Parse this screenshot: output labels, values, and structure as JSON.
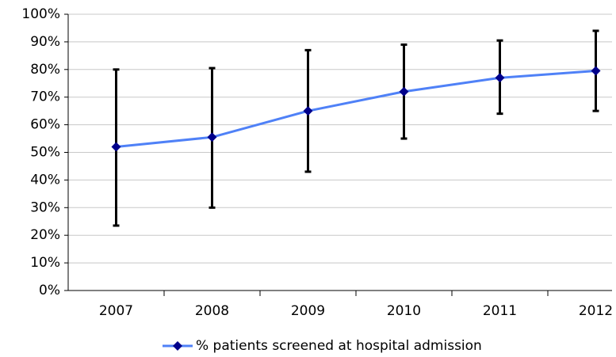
{
  "chart_data": {
    "type": "line",
    "categories": [
      "2007",
      "2008",
      "2009",
      "2010",
      "2011",
      "2012"
    ],
    "series": [
      {
        "name": "% patients screened at hospital admission",
        "color": "#4f81f7",
        "marker_color": "#00008b",
        "values": [
          52,
          55.5,
          65,
          72,
          77,
          79.5
        ],
        "lower": [
          23.5,
          30,
          43,
          55,
          64,
          65
        ],
        "upper": [
          80,
          80.5,
          87,
          89,
          90.5,
          94
        ]
      }
    ],
    "ylim": [
      0,
      100
    ],
    "yticks": [
      {
        "value": 0,
        "label": "0%"
      },
      {
        "value": 10,
        "label": "10%"
      },
      {
        "value": 20,
        "label": "20%"
      },
      {
        "value": 30,
        "label": "30%"
      },
      {
        "value": 40,
        "label": "40%"
      },
      {
        "value": 50,
        "label": "50%"
      },
      {
        "value": 60,
        "label": "60%"
      },
      {
        "value": 70,
        "label": "70%"
      },
      {
        "value": 80,
        "label": "80%"
      },
      {
        "value": 90,
        "label": "90%"
      },
      {
        "value": 100,
        "label": "100%"
      }
    ],
    "grid": true,
    "legend": "bottom"
  }
}
